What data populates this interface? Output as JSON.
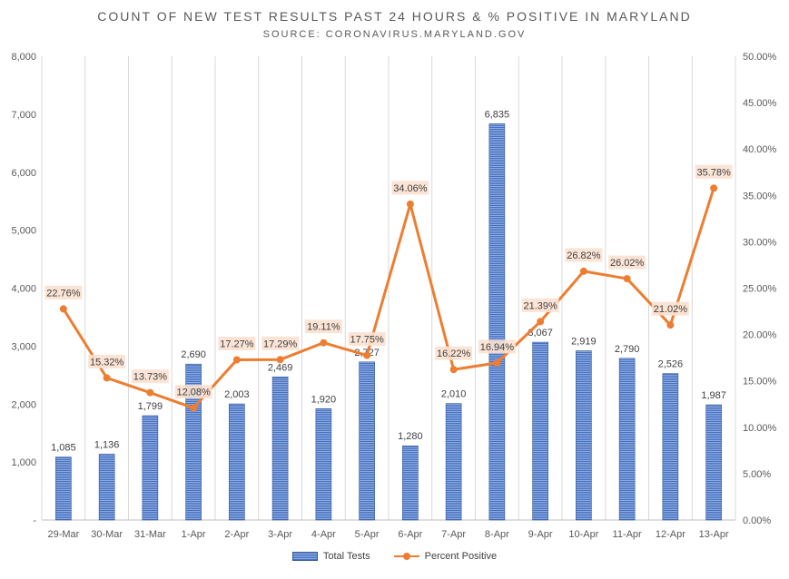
{
  "chart_data": {
    "type": "bar",
    "title": "COUNT OF NEW TEST RESULTS PAST 24 HOURS & % POSITIVE IN MARYLAND",
    "subtitle": "SOURCE: CORONAVIRUS.MARYLAND.GOV",
    "categories": [
      "29-Mar",
      "30-Mar",
      "31-Mar",
      "1-Apr",
      "2-Apr",
      "3-Apr",
      "4-Apr",
      "5-Apr",
      "6-Apr",
      "7-Apr",
      "8-Apr",
      "9-Apr",
      "10-Apr",
      "11-Apr",
      "12-Apr",
      "13-Apr"
    ],
    "series": [
      {
        "name": "Total Tests",
        "type": "bar",
        "axis": "left",
        "values": [
          1085,
          1136,
          1799,
          2690,
          2003,
          2469,
          1920,
          2727,
          1280,
          2010,
          6835,
          3067,
          2919,
          2790,
          2526,
          1987
        ],
        "labels": [
          "1,085",
          "1,136",
          "1,799",
          "2,690",
          "2,003",
          "2,469",
          "1,920",
          "2,727",
          "1,280",
          "2,010",
          "6,835",
          "3,067",
          "2,919",
          "2,790",
          "2,526",
          "1,987"
        ]
      },
      {
        "name": "Percent Positive",
        "type": "line",
        "axis": "right",
        "values": [
          22.76,
          15.32,
          13.73,
          12.08,
          17.27,
          17.29,
          19.11,
          17.75,
          34.06,
          16.22,
          16.94,
          21.39,
          26.82,
          26.02,
          21.02,
          35.78
        ],
        "labels": [
          "22.76%",
          "15.32%",
          "13.73%",
          "12.08%",
          "17.27%",
          "17.29%",
          "19.11%",
          "17.75%",
          "34.06%",
          "16.22%",
          "16.94%",
          "21.39%",
          "26.82%",
          "26.02%",
          "21.02%",
          "35.78%"
        ]
      }
    ],
    "left_axis": {
      "ylim": [
        0,
        8000
      ],
      "ticks": [
        0,
        1000,
        2000,
        3000,
        4000,
        5000,
        6000,
        7000,
        8000
      ],
      "tick_labels": [
        "-",
        "1,000",
        "2,000",
        "3,000",
        "4,000",
        "5,000",
        "6,000",
        "7,000",
        "8,000"
      ]
    },
    "right_axis": {
      "ylim": [
        0,
        50
      ],
      "ticks": [
        0,
        5,
        10,
        15,
        20,
        25,
        30,
        35,
        40,
        45,
        50
      ],
      "tick_labels": [
        "0.00%",
        "5.00%",
        "10.00%",
        "15.00%",
        "20.00%",
        "25.00%",
        "30.00%",
        "35.00%",
        "40.00%",
        "45.00%",
        "50.00%"
      ]
    },
    "grid": "vertical",
    "legend": "bottom",
    "colors": {
      "bar": "#4472c4",
      "bar_light": "#8fa9dc",
      "line": "#ed7d31",
      "label_bg": "#fbe1d0",
      "grid": "#d9d9d9",
      "text": "#595959"
    }
  }
}
